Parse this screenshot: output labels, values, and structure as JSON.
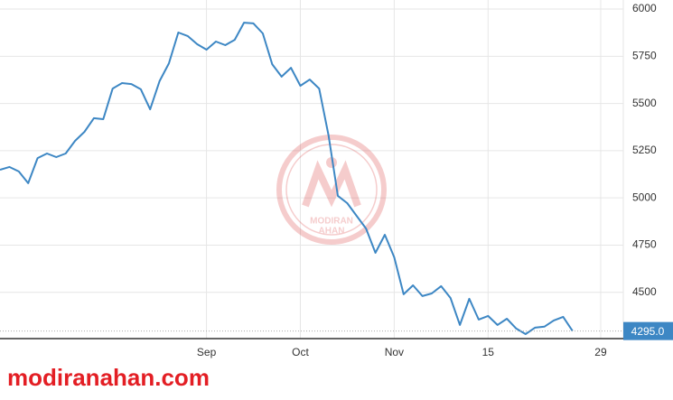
{
  "watermark": {
    "brand": "MODIRAN",
    "brand2": "AHAN"
  },
  "footer": "modiranahan.com",
  "chart_data": {
    "type": "line",
    "categories": [
      null,
      null,
      null,
      null,
      null,
      null,
      null,
      null,
      null,
      null,
      null,
      null,
      null,
      null,
      null,
      null,
      null,
      null,
      null,
      null,
      null,
      null,
      "Sep",
      null,
      null,
      null,
      null,
      null,
      null,
      null,
      null,
      null,
      "Oct",
      null,
      null,
      null,
      null,
      null,
      null,
      null,
      null,
      null,
      "Nov",
      null,
      null,
      null,
      null,
      null,
      null,
      null,
      null,
      null,
      "15",
      null,
      null,
      null,
      null,
      null,
      null,
      null,
      null,
      null,
      null,
      null,
      "29"
    ],
    "series": [
      {
        "color": "#3d87c4",
        "values": [
          5149,
          5164,
          5140,
          5078,
          5211,
          5235,
          5216,
          5235,
          5302,
          5350,
          5422,
          5417,
          5579,
          5608,
          5603,
          5575,
          5469,
          5618,
          5713,
          5876,
          5857,
          5814,
          5785,
          5828,
          5809,
          5837,
          5928,
          5924,
          5871,
          5708,
          5642,
          5689,
          5594,
          5627,
          5579,
          5331,
          5011,
          4972,
          4905,
          4838,
          4709,
          4805,
          4686,
          4490,
          4537,
          4480,
          4494,
          4533,
          4470,
          4327,
          4466,
          4356,
          4375,
          4327,
          4360,
          4308,
          4279,
          4313,
          4318,
          4351,
          4370,
          4295,
          null,
          null,
          null
        ],
        "value_labels": [
          null,
          null,
          null,
          null,
          null,
          null,
          null,
          null,
          null,
          null,
          null,
          null,
          null,
          null,
          null,
          null,
          null,
          null,
          null,
          null,
          null,
          null,
          null,
          null,
          null,
          null,
          null,
          null,
          null,
          null,
          null,
          null,
          null,
          null,
          null,
          null,
          null,
          null,
          null,
          null,
          null,
          null,
          null,
          null,
          null,
          null,
          null,
          null,
          null,
          null,
          null,
          null,
          null,
          null,
          null,
          null,
          null,
          null,
          null,
          null,
          null,
          "4295.0",
          null,
          null,
          null
        ]
      }
    ],
    "ylim": [
      4255,
      6048
    ],
    "yticks": [
      4500,
      4750,
      5000,
      5250,
      5500,
      5750,
      6000
    ],
    "grid": true
  }
}
